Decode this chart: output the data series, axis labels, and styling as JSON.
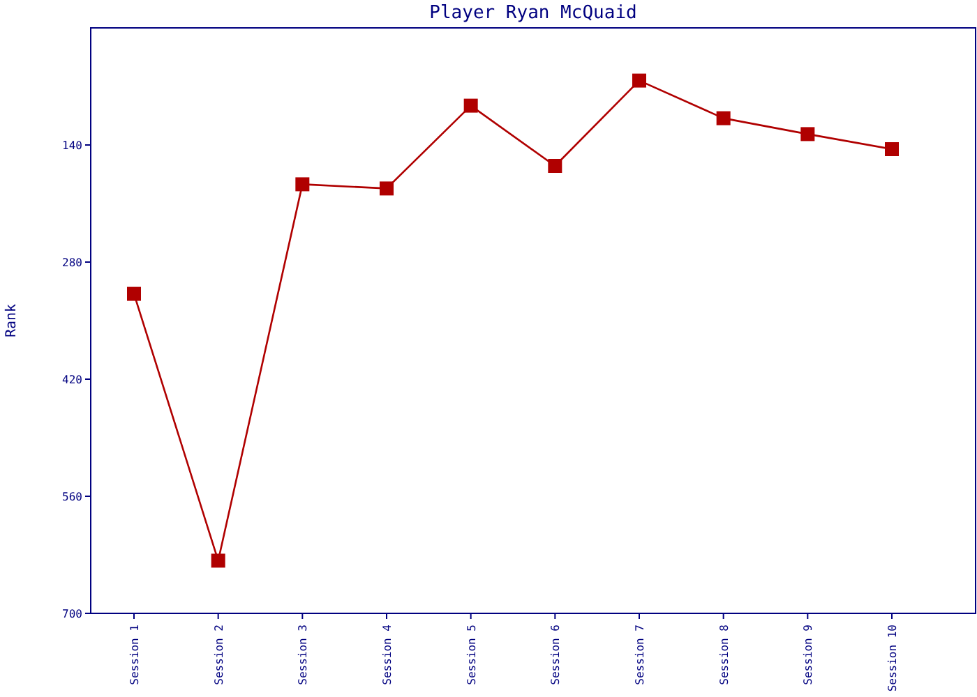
{
  "chart_data": {
    "type": "line",
    "title": "Player Ryan McQuaid",
    "ylabel": "Rank",
    "categories": [
      "Session 1",
      "Session 2",
      "Session 3",
      "Session 4",
      "Session 5",
      "Session 6",
      "Session 7",
      "Session 8",
      "Session 9",
      "Session 10"
    ],
    "series": [
      {
        "color": "#b00000",
        "values": [
          318,
          637,
          187,
          192,
          93,
          165,
          63,
          108,
          127,
          145
        ]
      }
    ],
    "ylim": [
      700,
      0
    ],
    "yticks": [
      140,
      280,
      420,
      560,
      700
    ],
    "marker": "square",
    "line_style": "solid"
  }
}
